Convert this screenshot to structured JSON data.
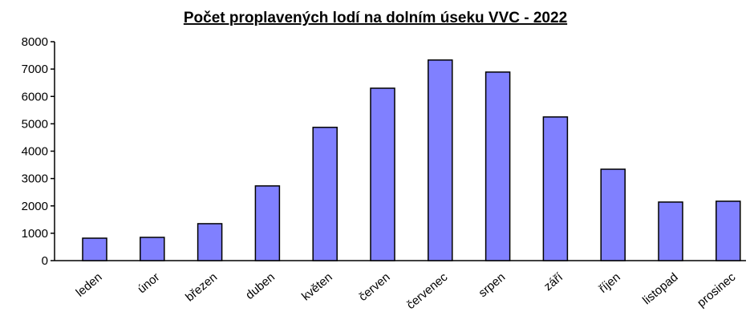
{
  "chart_data": {
    "type": "bar",
    "title": "Počet proplavených lodí na dolním úseku VVC - 2022",
    "categories": [
      "leden",
      "únor",
      "březen",
      "duben",
      "květen",
      "červen",
      "červenec",
      "srpen",
      "září",
      "říjen",
      "listopad",
      "prosinec"
    ],
    "values": [
      820,
      850,
      1350,
      2730,
      4870,
      6300,
      7330,
      6890,
      5250,
      3340,
      2140,
      2170
    ],
    "color": "#8080ff",
    "ylim": [
      0,
      8000
    ],
    "yticks": [
      0,
      1000,
      2000,
      3000,
      4000,
      5000,
      6000,
      7000,
      8000
    ],
    "grid": false
  }
}
